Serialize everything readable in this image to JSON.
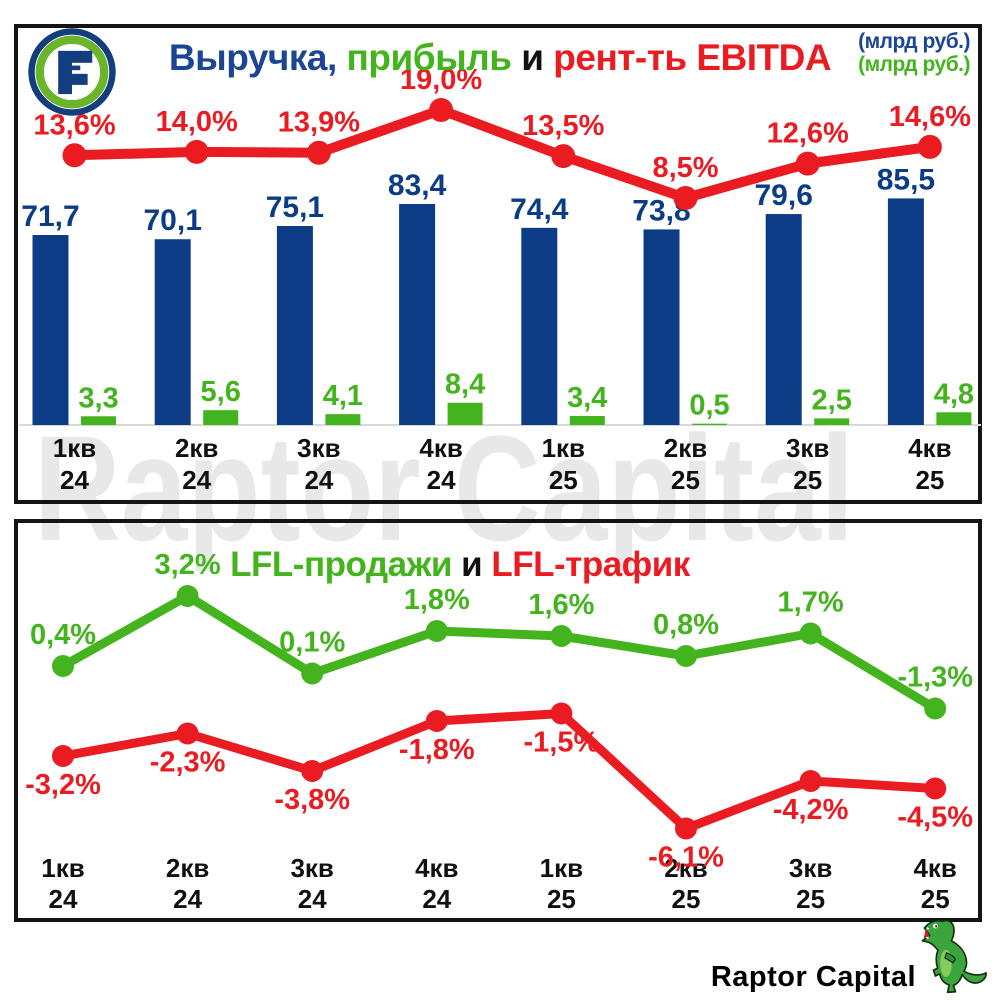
{
  "watermark": "Raptor Capital",
  "header": {
    "logo_icon": "fix-price-logo",
    "unit_legend": [
      {
        "text": "(млрд руб.)",
        "color": "#1c4693"
      },
      {
        "text": "(млрд руб.)",
        "color": "#44b41e"
      }
    ]
  },
  "footer": {
    "brand": "Raptor Capital",
    "icon": "raptor-dinosaur-icon"
  },
  "chart_data": [
    {
      "type": "bar",
      "combo": "two bar series + line series (secondary % axis)",
      "title": "Выручка, прибыль и рент-ть EBITDA",
      "title_parts": [
        {
          "text": "Выручка, ",
          "color": "#1c4693"
        },
        {
          "text": "прибыль",
          "color": "#44b41e"
        },
        {
          "text": " и ",
          "color": "#111111"
        },
        {
          "text": "рент-ть EBITDA",
          "color": "#ea1c22"
        }
      ],
      "axis": "hidden",
      "categories": [
        {
          "q": "1кв",
          "yr": "24"
        },
        {
          "q": "2кв",
          "yr": "24"
        },
        {
          "q": "3кв",
          "yr": "24"
        },
        {
          "q": "4кв",
          "yr": "24"
        },
        {
          "q": "1кв",
          "yr": "25"
        },
        {
          "q": "2кв",
          "yr": "25"
        },
        {
          "q": "3кв",
          "yr": "25"
        },
        {
          "q": "4кв",
          "yr": "25"
        }
      ],
      "series": [
        {
          "name": "Выручка",
          "kind": "bar",
          "unit": "млрд руб.",
          "color": "#0b3c85",
          "values": [
            71.7,
            70.1,
            75.1,
            83.4,
            74.4,
            73.8,
            79.6,
            85.5
          ],
          "labels": [
            "71,7",
            "70,1",
            "75,1",
            "83,4",
            "74,4",
            "73,8",
            "79,6",
            "85,5"
          ]
        },
        {
          "name": "прибыль",
          "kind": "bar",
          "unit": "млрд руб.",
          "color": "#44b41e",
          "values": [
            3.3,
            5.6,
            4.1,
            8.4,
            3.4,
            0.5,
            2.5,
            4.8
          ],
          "labels": [
            "3,3",
            "5,6",
            "4,1",
            "8,4",
            "3,4",
            "0,5",
            "2,5",
            "4,8"
          ]
        },
        {
          "name": "рент-ть EBITDA",
          "kind": "line",
          "unit": "%",
          "color": "#ea1c22",
          "values": [
            13.6,
            14.0,
            13.9,
            19.0,
            13.5,
            8.5,
            12.6,
            14.6
          ],
          "labels": [
            "13,6%",
            "14,0%",
            "13,9%",
            "19,0%",
            "13,5%",
            "8,5%",
            "12,6%",
            "14,6%"
          ]
        }
      ]
    },
    {
      "type": "line",
      "title": "LFL-продажи и LFL-трафик",
      "title_parts": [
        {
          "text": "LFL-продажи",
          "color": "#44b41e"
        },
        {
          "text": " и ",
          "color": "#111111"
        },
        {
          "text": "LFL-трафик",
          "color": "#ea1c22"
        }
      ],
      "axis": "hidden",
      "unit": "%",
      "categories": [
        {
          "q": "1кв",
          "yr": "24"
        },
        {
          "q": "2кв",
          "yr": "24"
        },
        {
          "q": "3кв",
          "yr": "24"
        },
        {
          "q": "4кв",
          "yr": "24"
        },
        {
          "q": "1кв",
          "yr": "25"
        },
        {
          "q": "2кв",
          "yr": "25"
        },
        {
          "q": "3кв",
          "yr": "25"
        },
        {
          "q": "4кв",
          "yr": "25"
        }
      ],
      "series": [
        {
          "name": "LFL-продажи",
          "kind": "line",
          "color": "#44b41e",
          "values": [
            0.4,
            3.2,
            0.1,
            1.8,
            1.6,
            0.8,
            1.7,
            -1.3
          ],
          "labels": [
            "0,4%",
            "3,2%",
            "0,1%",
            "1,8%",
            "1,6%",
            "0,8%",
            "1,7%",
            "-1,3%"
          ]
        },
        {
          "name": "LFL-трафик",
          "kind": "line",
          "color": "#ea1c22",
          "values": [
            -3.2,
            -2.3,
            -3.8,
            -1.8,
            -1.5,
            -6.1,
            -4.2,
            -4.5
          ],
          "labels": [
            "-3,2%",
            "-2,3%",
            "-3,8%",
            "-1,8%",
            "-1,5%",
            "-6,1%",
            "-4,2%",
            "-4,5%"
          ]
        }
      ]
    }
  ]
}
